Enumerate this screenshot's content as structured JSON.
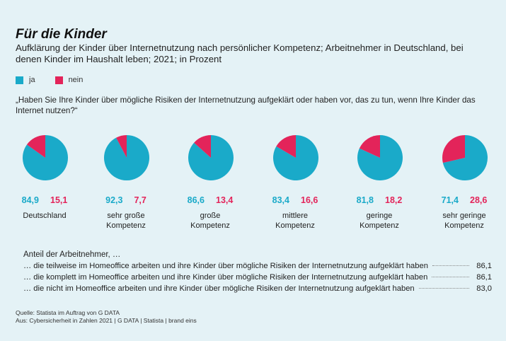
{
  "title": "Für die Kinder",
  "subtitle": "Aufklärung der Kinder über Internetnutzung nach persönlicher Kompetenz; Arbeitnehmer in Deutschland, bei denen Kinder im Haushalt leben; 2021; in Prozent",
  "legend": {
    "ja": "ja",
    "nein": "nein"
  },
  "colors": {
    "ja": "#1aaac9",
    "nein": "#e3245a",
    "background": "#e4f2f6"
  },
  "question": "„Haben Sie Ihre Kinder über mögliche Risiken der Internetnutzung aufgeklärt oder haben vor, das zu tun, wenn Ihre Kinder das Internet nutzen?“",
  "chart_data": {
    "type": "pie",
    "series_names": [
      "ja",
      "nein"
    ],
    "groups": [
      {
        "label": "Deutschland",
        "ja": 84.9,
        "nein": 15.1,
        "ja_text": "84,9",
        "nein_text": "15,1"
      },
      {
        "label": "sehr große\nKompetenz",
        "ja": 92.3,
        "nein": 7.7,
        "ja_text": "92,3",
        "nein_text": "7,7"
      },
      {
        "label": "große\nKompetenz",
        "ja": 86.6,
        "nein": 13.4,
        "ja_text": "86,6",
        "nein_text": "13,4"
      },
      {
        "label": "mittlere\nKompetenz",
        "ja": 83.4,
        "nein": 16.6,
        "ja_text": "83,4",
        "nein_text": "16,6"
      },
      {
        "label": "geringe\nKompetenz",
        "ja": 81.8,
        "nein": 18.2,
        "ja_text": "81,8",
        "nein_text": "18,2"
      },
      {
        "label": "sehr geringe\nKompetenz",
        "ja": 71.4,
        "nein": 28.6,
        "ja_text": "71,4",
        "nein_text": "28,6"
      }
    ]
  },
  "employees": {
    "title": "Anteil der Arbeitnehmer,  …",
    "rows": [
      {
        "text": "… die teilweise im Homeoffice arbeiten und ihre Kinder über mögliche Risiken der Internetnutzung aufgeklärt haben",
        "value": "86,1"
      },
      {
        "text": "… die komplett im Homeoffice arbeiten und ihre Kinder über mögliche Risiken der Internetnutzung aufgeklärt haben",
        "value": "86,1"
      },
      {
        "text": "… die nicht im Homeoffice arbeiten und ihre Kinder über mögliche Risiken der Internetnutzung aufgeklärt haben",
        "value": "83,0"
      }
    ]
  },
  "footer": {
    "source": "Quelle: Statista im Auftrag von G DATA",
    "from": "Aus: Cybersicherheit in Zahlen 2021 | G DATA | Statista | brand eins"
  }
}
